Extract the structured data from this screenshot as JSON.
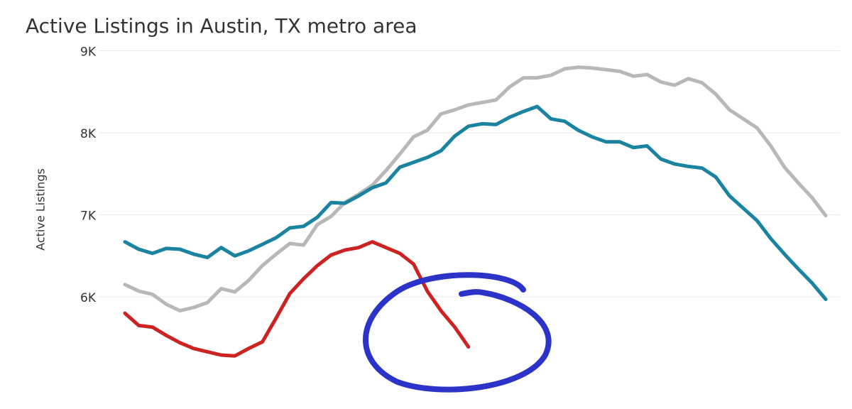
{
  "chart_data": {
    "type": "line",
    "title": "Active Listings in Austin, TX metro area",
    "ylabel": "Active Listings",
    "ylim": [
      4800,
      9000
    ],
    "yticks": [
      {
        "value": 6000,
        "label": "6K"
      },
      {
        "value": 7000,
        "label": "7K"
      },
      {
        "value": 8000,
        "label": "8K"
      },
      {
        "value": 9000,
        "label": "9K"
      }
    ],
    "grid": true,
    "series": [
      {
        "color": "#b8b8b8",
        "values": [
          6150,
          6070,
          6030,
          5910,
          5830,
          5870,
          5930,
          6100,
          6060,
          6200,
          6380,
          6520,
          6650,
          6630,
          6880,
          6980,
          7150,
          7250,
          7360,
          7540,
          7740,
          7950,
          8030,
          8230,
          8280,
          8340,
          8370,
          8400,
          8560,
          8670,
          8670,
          8700,
          8780,
          8800,
          8790,
          8770,
          8750,
          8690,
          8710,
          8620,
          8580,
          8660,
          8610,
          8470,
          8280,
          8170,
          8060,
          7840,
          7580,
          7390,
          7210,
          6990
        ]
      },
      {
        "color": "#1a84a0",
        "values": [
          6670,
          6580,
          6530,
          6590,
          6580,
          6520,
          6480,
          6600,
          6500,
          6560,
          6640,
          6720,
          6840,
          6860,
          6970,
          7150,
          7140,
          7230,
          7330,
          7390,
          7580,
          7640,
          7700,
          7780,
          7960,
          8080,
          8110,
          8100,
          8190,
          8260,
          8320,
          8170,
          8140,
          8030,
          7950,
          7890,
          7890,
          7820,
          7840,
          7680,
          7620,
          7590,
          7570,
          7460,
          7230,
          7080,
          6930,
          6710,
          6520,
          6340,
          6170,
          5970
        ]
      },
      {
        "color": "#cc2222",
        "values": [
          5800,
          5650,
          5630,
          5530,
          5440,
          5370,
          5330,
          5290,
          5280,
          5370,
          5450,
          5740,
          6040,
          6220,
          6380,
          6510,
          6570,
          6600,
          6670,
          6600,
          6530,
          6400,
          6070,
          5830,
          5630,
          5390,
          null,
          null,
          null,
          null,
          null,
          null,
          null,
          null,
          null,
          null,
          null,
          null,
          null,
          null,
          null,
          null,
          null,
          null,
          null,
          null,
          null,
          null,
          null,
          null,
          null,
          null
        ]
      }
    ]
  }
}
